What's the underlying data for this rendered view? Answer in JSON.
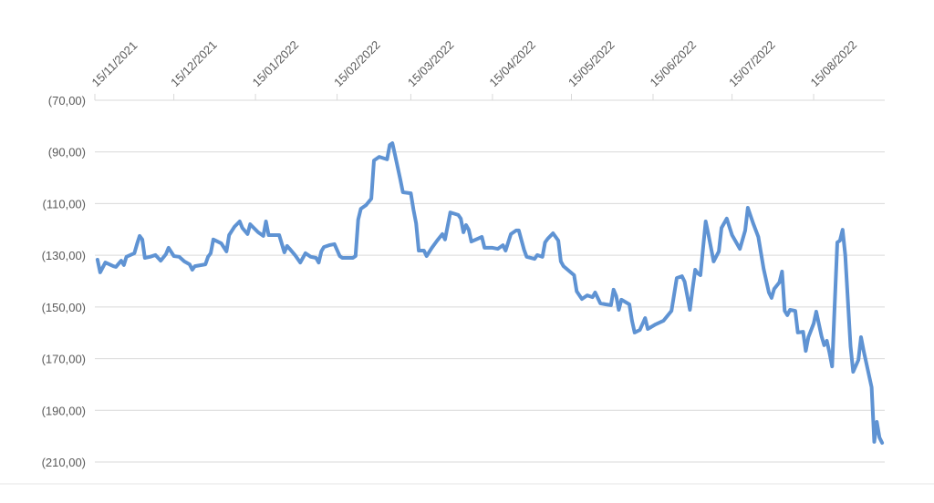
{
  "chart_data": {
    "type": "line",
    "color": "#5f93d3",
    "grid": true,
    "xlim": [
      "2021-11-15",
      "2022-09-11"
    ],
    "xticks": [
      {
        "value": "2021-11-15",
        "label": "15/11/2021"
      },
      {
        "value": "2021-12-15",
        "label": "15/12/2021"
      },
      {
        "value": "2022-01-15",
        "label": "15/01/2022"
      },
      {
        "value": "2022-02-15",
        "label": "15/02/2022"
      },
      {
        "value": "2022-03-15",
        "label": "15/03/2022"
      },
      {
        "value": "2022-04-15",
        "label": "15/04/2022"
      },
      {
        "value": "2022-05-15",
        "label": "15/05/2022"
      },
      {
        "value": "2022-06-15",
        "label": "15/06/2022"
      },
      {
        "value": "2022-07-15",
        "label": "15/07/2022"
      },
      {
        "value": "2022-08-15",
        "label": "15/08/2022"
      }
    ],
    "ylim": [
      -210,
      -70
    ],
    "yticks": [
      {
        "value": -70,
        "label": "(70,00)"
      },
      {
        "value": -90,
        "label": "(90,00)"
      },
      {
        "value": -110,
        "label": "(110,00)"
      },
      {
        "value": -130,
        "label": "(130,00)"
      },
      {
        "value": -150,
        "label": "(150,00)"
      },
      {
        "value": -170,
        "label": "(170,00)"
      },
      {
        "value": -190,
        "label": "(190,00)"
      },
      {
        "value": -210,
        "label": "(210,00)"
      }
    ],
    "x": [
      "2021-11-16",
      "2021-11-17",
      "2021-11-19",
      "2021-11-22",
      "2021-11-23",
      "2021-11-25",
      "2021-11-26",
      "2021-11-27",
      "2021-11-30",
      "2021-12-01",
      "2021-12-02",
      "2021-12-03",
      "2021-12-04",
      "2021-12-06",
      "2021-12-08",
      "2021-12-10",
      "2021-12-12",
      "2021-12-13",
      "2021-12-15",
      "2021-12-17",
      "2021-12-19",
      "2021-12-21",
      "2021-12-22",
      "2021-12-23",
      "2021-12-27",
      "2021-12-28",
      "2021-12-29",
      "2021-12-30",
      "2022-01-02",
      "2022-01-04",
      "2022-01-05",
      "2022-01-07",
      "2022-01-09",
      "2022-01-10",
      "2022-01-12",
      "2022-01-13",
      "2022-01-16",
      "2022-01-18",
      "2022-01-19",
      "2022-01-20",
      "2022-01-24",
      "2022-01-26",
      "2022-01-27",
      "2022-01-28",
      "2022-01-30",
      "2022-02-01",
      "2022-02-03",
      "2022-02-05",
      "2022-02-07",
      "2022-02-08",
      "2022-02-09",
      "2022-02-10",
      "2022-02-12",
      "2022-02-14",
      "2022-02-16",
      "2022-02-17",
      "2022-02-21",
      "2022-02-22",
      "2022-02-23",
      "2022-02-24",
      "2022-02-26",
      "2022-02-28",
      "2022-03-01",
      "2022-03-03",
      "2022-03-06",
      "2022-03-07",
      "2022-03-08",
      "2022-03-09",
      "2022-03-11",
      "2022-03-12",
      "2022-03-15",
      "2022-03-16",
      "2022-03-17",
      "2022-03-18",
      "2022-03-20",
      "2022-03-21",
      "2022-03-23",
      "2022-03-25",
      "2022-03-27",
      "2022-03-28",
      "2022-03-30",
      "2022-04-02",
      "2022-04-03",
      "2022-04-04",
      "2022-04-05",
      "2022-04-06",
      "2022-04-07",
      "2022-04-11",
      "2022-04-12",
      "2022-04-15",
      "2022-04-17",
      "2022-04-19",
      "2022-04-20",
      "2022-04-22",
      "2022-04-24",
      "2022-04-25",
      "2022-04-27",
      "2022-04-28",
      "2022-05-01",
      "2022-05-02",
      "2022-05-04",
      "2022-05-05",
      "2022-05-06",
      "2022-05-08",
      "2022-05-10",
      "2022-05-11",
      "2022-05-12",
      "2022-05-16",
      "2022-05-17",
      "2022-05-19",
      "2022-05-21",
      "2022-05-23",
      "2022-05-24",
      "2022-05-26",
      "2022-05-28",
      "2022-05-30",
      "2022-05-31",
      "2022-06-01",
      "2022-06-02",
      "2022-06-03",
      "2022-06-06",
      "2022-06-07",
      "2022-06-08",
      "2022-06-10",
      "2022-06-12",
      "2022-06-13",
      "2022-06-16",
      "2022-06-19",
      "2022-06-22",
      "2022-06-23",
      "2022-06-24",
      "2022-06-26",
      "2022-06-27",
      "2022-06-29",
      "2022-06-30",
      "2022-07-01",
      "2022-07-02",
      "2022-07-03",
      "2022-07-05",
      "2022-07-06",
      "2022-07-08",
      "2022-07-10",
      "2022-07-11",
      "2022-07-13",
      "2022-07-15",
      "2022-07-18",
      "2022-07-20",
      "2022-07-21",
      "2022-07-23",
      "2022-07-25",
      "2022-07-27",
      "2022-07-29",
      "2022-07-30",
      "2022-07-31",
      "2022-08-02",
      "2022-08-03",
      "2022-08-04",
      "2022-08-05",
      "2022-08-06",
      "2022-08-08",
      "2022-08-09",
      "2022-08-11",
      "2022-08-12",
      "2022-08-13",
      "2022-08-15",
      "2022-08-16",
      "2022-08-18",
      "2022-08-19",
      "2022-08-20",
      "2022-08-21",
      "2022-08-22",
      "2022-08-24",
      "2022-08-25",
      "2022-08-26",
      "2022-08-27",
      "2022-08-28",
      "2022-08-29",
      "2022-08-30",
      "2022-09-01",
      "2022-09-02",
      "2022-09-03",
      "2022-09-06",
      "2022-09-07",
      "2022-09-08",
      "2022-09-09",
      "2022-09-10"
    ],
    "values": [
      -131.7,
      -136.6,
      -132.8,
      -134.2,
      -134.5,
      -132.1,
      -133.8,
      -130.6,
      -129.2,
      -125.7,
      -122.5,
      -123.9,
      -131.0,
      -130.6,
      -129.9,
      -132.1,
      -129.6,
      -127.1,
      -130.3,
      -130.6,
      -132.4,
      -133.5,
      -135.6,
      -134.2,
      -133.5,
      -130.6,
      -129.2,
      -123.9,
      -125.4,
      -128.5,
      -122.2,
      -119.0,
      -116.9,
      -119.4,
      -121.8,
      -118.0,
      -121.1,
      -122.5,
      -116.9,
      -122.2,
      -122.2,
      -128.9,
      -126.4,
      -127.5,
      -129.9,
      -132.8,
      -129.2,
      -130.6,
      -131.0,
      -132.8,
      -128.5,
      -126.8,
      -126.1,
      -125.7,
      -130.3,
      -131.0,
      -131.0,
      -130.3,
      -116.2,
      -112.0,
      -110.6,
      -108.1,
      -93.3,
      -91.9,
      -92.9,
      -87.3,
      -86.6,
      -91.2,
      -100.7,
      -105.6,
      -106.0,
      -112.3,
      -117.6,
      -128.2,
      -128.2,
      -130.3,
      -127.1,
      -124.3,
      -121.8,
      -123.9,
      -113.4,
      -114.4,
      -115.8,
      -121.1,
      -118.3,
      -120.1,
      -124.7,
      -122.9,
      -127.1,
      -127.1,
      -127.5,
      -126.1,
      -128.2,
      -121.8,
      -120.4,
      -120.4,
      -127.8,
      -130.6,
      -131.4,
      -129.9,
      -130.6,
      -125.0,
      -123.6,
      -121.5,
      -124.3,
      -132.4,
      -134.2,
      -137.7,
      -144.0,
      -146.9,
      -145.5,
      -146.2,
      -144.4,
      -148.6,
      -149.0,
      -149.3,
      -143.3,
      -145.8,
      -151.1,
      -147.2,
      -149.0,
      -155.3,
      -159.9,
      -158.9,
      -154.3,
      -158.5,
      -156.7,
      -155.3,
      -151.5,
      -145.1,
      -138.8,
      -138.1,
      -140.2,
      -151.1,
      -143.0,
      -135.6,
      -137.0,
      -137.7,
      -116.9,
      -121.8,
      -132.4,
      -128.5,
      -119.4,
      -115.8,
      -122.2,
      -127.5,
      -120.4,
      -111.6,
      -117.6,
      -122.9,
      -135.2,
      -144.4,
      -146.5,
      -143.0,
      -140.5,
      -136.3,
      -151.5,
      -153.2,
      -151.1,
      -151.5,
      -159.9,
      -159.6,
      -167.0,
      -161.7,
      -156.4,
      -151.8,
      -161.3,
      -164.8,
      -163.1,
      -167.7,
      -173.0,
      -125.0,
      -124.3,
      -120.1,
      -129.9,
      -147.6,
      -165.2,
      -175.1,
      -170.5,
      -161.7,
      -167.0,
      -181.1,
      -202.2,
      -194.5,
      -200.5,
      -202.6
    ]
  }
}
